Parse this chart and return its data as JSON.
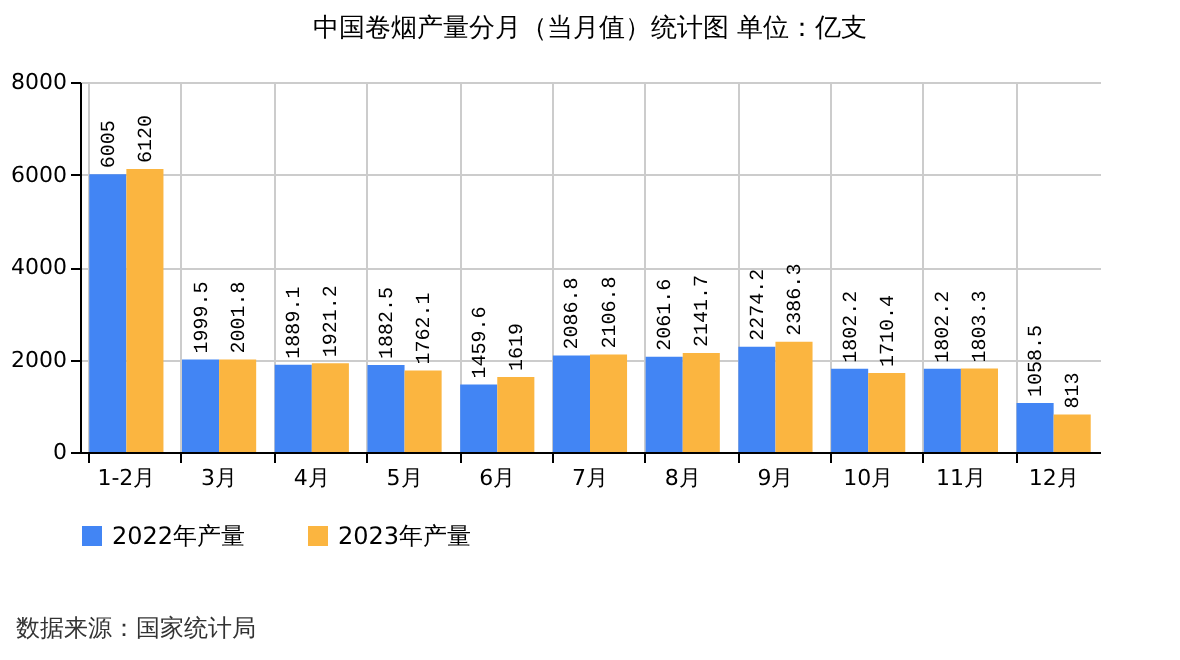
{
  "chart_data": {
    "type": "bar",
    "title": "中国卷烟产量分月（当月值）统计图 单位：亿支",
    "categories": [
      "1-2月",
      "3月",
      "4月",
      "5月",
      "6月",
      "7月",
      "8月",
      "9月",
      "10月",
      "11月",
      "12月"
    ],
    "series": [
      {
        "name": "2022年产量",
        "color": "#4285f4",
        "values": [
          6005,
          1999.5,
          1889.1,
          1882.5,
          1459.6,
          2086.8,
          2061.6,
          2274.2,
          1802.2,
          1802.2,
          1058.5
        ]
      },
      {
        "name": "2023年产量",
        "color": "#fbb540",
        "values": [
          6120,
          2001.8,
          1921.2,
          1762.1,
          1619,
          2106.8,
          2141.7,
          2386.3,
          1710.4,
          1803.3,
          813
        ]
      }
    ],
    "ylim": [
      0,
      8000
    ],
    "yticks": [
      0,
      2000,
      4000,
      6000,
      8000
    ],
    "grid": true,
    "legend": "bottom",
    "data_labels": true,
    "annotations": [
      "数据来源：国家统计局"
    ]
  }
}
